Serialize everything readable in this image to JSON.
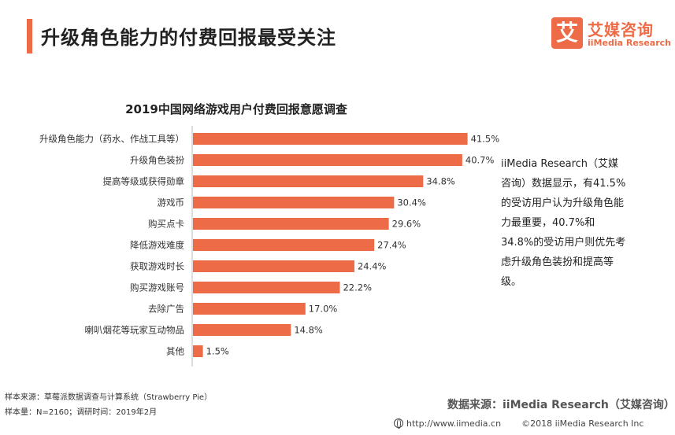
{
  "header": {
    "title": "升级角色能力的付费回报最受关注",
    "logo_mark": "艾",
    "logo_cn": "艾媒咨询",
    "logo_en": "iiMedia Research",
    "accent_color": "#ee6b47"
  },
  "chart_data": {
    "type": "bar",
    "orientation": "horizontal",
    "title": "2019中国网络游戏用户付费回报意愿调查",
    "categories": [
      "升级角色能力（药水、作战工具等）",
      "升级角色装扮",
      "提高等级或获得勋章",
      "游戏币",
      "购买点卡",
      "降低游戏难度",
      "获取游戏时长",
      "购买游戏账号",
      "去除广告",
      "喇叭烟花等玩家互动物品",
      "其他"
    ],
    "values": [
      41.5,
      40.7,
      34.8,
      30.4,
      29.6,
      27.4,
      24.4,
      22.2,
      17.0,
      14.8,
      1.5
    ],
    "value_labels": [
      "41.5%",
      "40.7%",
      "34.8%",
      "30.4%",
      "29.6%",
      "27.4%",
      "24.4%",
      "22.2%",
      "17.0%",
      "14.8%",
      "1.5%"
    ],
    "xlim": [
      0,
      45
    ],
    "grid": false,
    "bar_color": "#ee6b47"
  },
  "description": "iiMedia Research（艾媒咨询）数据显示，有41.5%的受访用户认为升级角色能力最重要，40.7%和34.8%的受访用户则优先考虑升级角色装扮和提高等级。",
  "source": {
    "line1": "样本来源：草莓派数据调查与计算系统（Strawberry Pie）",
    "line2": "样本量：N=2160；调研时间：2019年2月",
    "data_source": "数据来源：iiMedia Research（艾媒咨询）"
  },
  "footer": {
    "url": "http://www.iimedia.cn",
    "copyright": "©2018  iiMedia Research  Inc"
  }
}
